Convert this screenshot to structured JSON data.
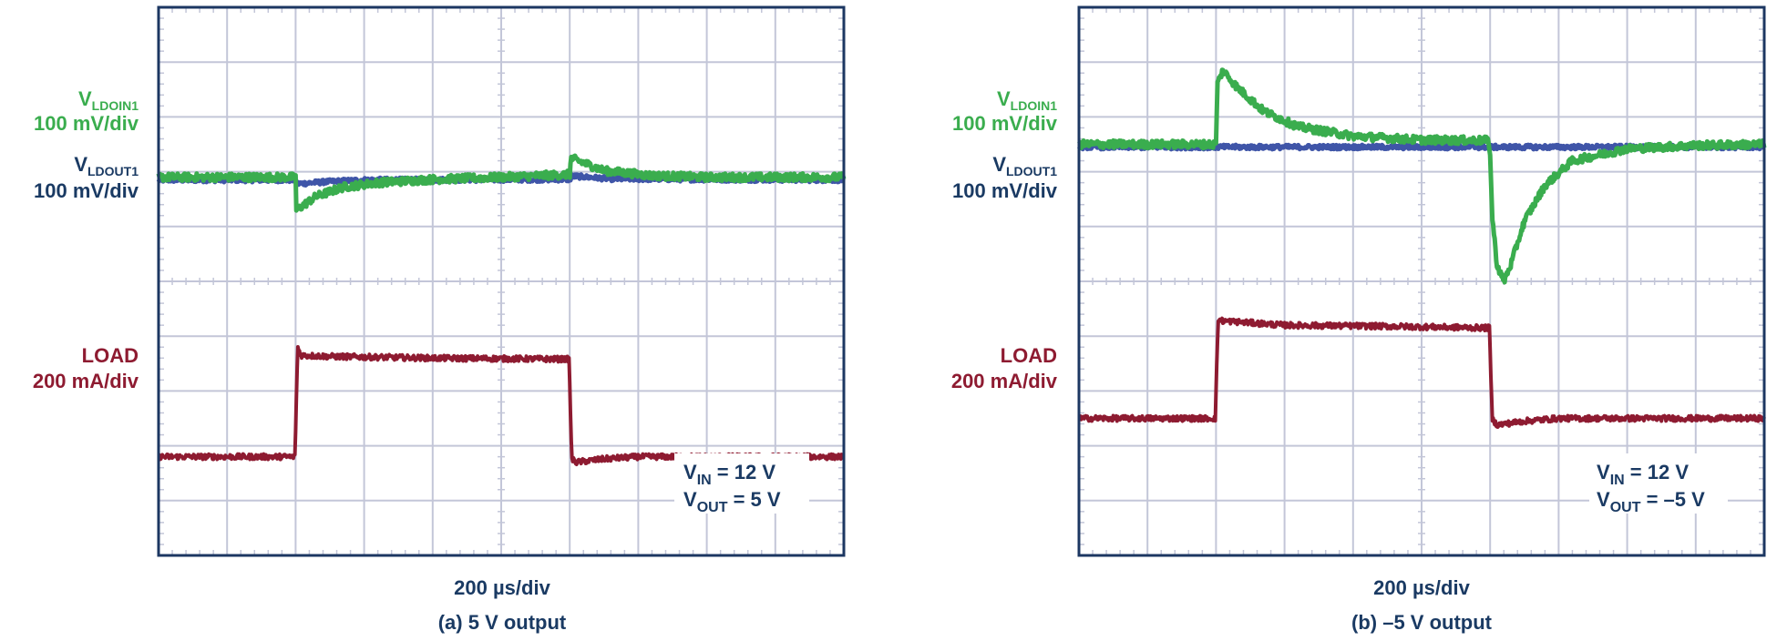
{
  "colors": {
    "vin_trace": "#3aad4e",
    "vout_trace": "#3f55a8",
    "load_trace": "#8e1b31",
    "label_text": "#1a3a63",
    "grid": "#c3c6d8",
    "frame": "#1c3762"
  },
  "chart_data": [
    {
      "type": "line",
      "caption": "(a) 5 V output",
      "time_scale": "200 µs/div",
      "grid": {
        "x_divisions": 10,
        "y_divisions": 10
      },
      "x_unit": "div",
      "y_unit": "div",
      "xlim": [
        0,
        10
      ],
      "ylim": [
        0,
        10
      ],
      "channel_labels": {
        "vin": {
          "main": "V",
          "sub": "LDOIN1",
          "scale": "100 mV/div"
        },
        "vout": {
          "main": "V",
          "sub": "LDOUT1",
          "scale": "100 mV/div"
        },
        "load": {
          "main": "LOAD",
          "scale": "200 mA/div"
        }
      },
      "annotation": {
        "vin": {
          "main": "V",
          "sub": "IN",
          "rest": " = 12 V"
        },
        "vout": {
          "main": "V",
          "sub": "OUT",
          "rest": " = 5 V"
        }
      },
      "series": [
        {
          "key": "vin",
          "color": "#3aad4e",
          "noise": 0.07,
          "points": [
            [
              0,
              6.9
            ],
            [
              2.0,
              6.9
            ],
            [
              2.01,
              6.3
            ],
            [
              2.3,
              6.55
            ],
            [
              2.7,
              6.72
            ],
            [
              3.2,
              6.8
            ],
            [
              4.0,
              6.86
            ],
            [
              5.0,
              6.9
            ],
            [
              6.0,
              6.95
            ],
            [
              6.02,
              7.25
            ],
            [
              6.5,
              7.02
            ],
            [
              7.2,
              6.93
            ],
            [
              8.0,
              6.9
            ],
            [
              10,
              6.9
            ]
          ]
        },
        {
          "key": "vout",
          "color": "#3f55a8",
          "noise": 0.04,
          "points": [
            [
              0,
              6.85
            ],
            [
              2.0,
              6.85
            ],
            [
              2.02,
              6.78
            ],
            [
              2.5,
              6.82
            ],
            [
              3.0,
              6.85
            ],
            [
              6.0,
              6.86
            ],
            [
              6.05,
              6.92
            ],
            [
              6.6,
              6.87
            ],
            [
              10,
              6.85
            ]
          ]
        },
        {
          "key": "load",
          "color": "#8e1b31",
          "noise": 0.05,
          "points": [
            [
              0,
              1.8
            ],
            [
              1.99,
              1.8
            ],
            [
              2.03,
              3.8
            ],
            [
              2.08,
              3.65
            ],
            [
              2.5,
              3.63
            ],
            [
              4.0,
              3.6
            ],
            [
              5.99,
              3.58
            ],
            [
              6.03,
              1.75
            ],
            [
              6.1,
              1.7
            ],
            [
              6.5,
              1.76
            ],
            [
              7.0,
              1.8
            ],
            [
              10,
              1.8
            ]
          ]
        }
      ]
    },
    {
      "type": "line",
      "caption": "(b) –5 V output",
      "time_scale": "200 µs/div",
      "grid": {
        "x_divisions": 10,
        "y_divisions": 10
      },
      "x_unit": "div",
      "y_unit": "div",
      "xlim": [
        0,
        10
      ],
      "ylim": [
        0,
        10
      ],
      "channel_labels": {
        "vin": {
          "main": "V",
          "sub": "LDOIN1",
          "scale": "100 mV/div"
        },
        "vout": {
          "main": "V",
          "sub": "LDOUT1",
          "scale": "100 mV/div"
        },
        "load": {
          "main": "LOAD",
          "scale": "200 mA/div"
        }
      },
      "annotation": {
        "vin": {
          "main": "V",
          "sub": "IN",
          "rest": " = 12 V"
        },
        "vout": {
          "main": "V",
          "sub": "OUT",
          "rest": " = –5 V"
        }
      },
      "series": [
        {
          "key": "vin",
          "color": "#3aad4e",
          "noise": 0.07,
          "points": [
            [
              0,
              7.5
            ],
            [
              2.0,
              7.5
            ],
            [
              2.02,
              8.6
            ],
            [
              2.1,
              8.85
            ],
            [
              2.3,
              8.55
            ],
            [
              2.7,
              8.1
            ],
            [
              3.2,
              7.82
            ],
            [
              4.0,
              7.65
            ],
            [
              5.0,
              7.58
            ],
            [
              5.98,
              7.57
            ],
            [
              6.0,
              7.3
            ],
            [
              6.03,
              6.2
            ],
            [
              6.1,
              5.3
            ],
            [
              6.2,
              5.0
            ],
            [
              6.3,
              5.3
            ],
            [
              6.5,
              6.1
            ],
            [
              6.8,
              6.75
            ],
            [
              7.2,
              7.2
            ],
            [
              8.0,
              7.42
            ],
            [
              9.0,
              7.48
            ],
            [
              10,
              7.5
            ]
          ]
        },
        {
          "key": "vout",
          "color": "#3f55a8",
          "noise": 0.04,
          "points": [
            [
              0,
              7.45
            ],
            [
              10,
              7.45
            ]
          ]
        },
        {
          "key": "load",
          "color": "#8e1b31",
          "noise": 0.05,
          "points": [
            [
              0,
              2.5
            ],
            [
              1.99,
              2.5
            ],
            [
              2.03,
              4.3
            ],
            [
              2.1,
              4.28
            ],
            [
              3.0,
              4.2
            ],
            [
              4.5,
              4.18
            ],
            [
              5.99,
              4.15
            ],
            [
              6.03,
              2.5
            ],
            [
              6.1,
              2.38
            ],
            [
              6.5,
              2.45
            ],
            [
              7.0,
              2.5
            ],
            [
              10,
              2.5
            ]
          ]
        }
      ]
    }
  ]
}
